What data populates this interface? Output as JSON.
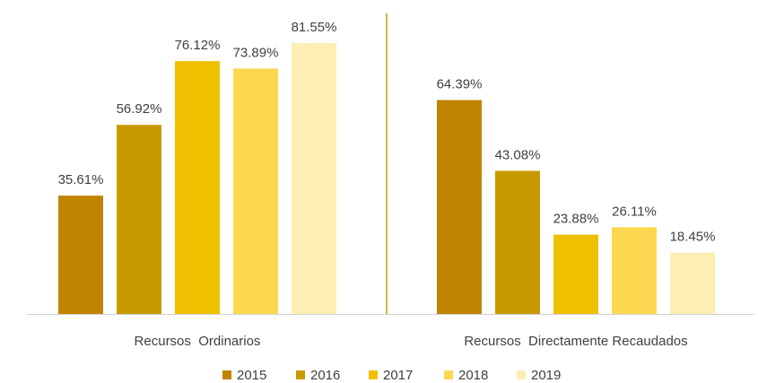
{
  "chart_data": {
    "type": "bar",
    "categories": [
      "Recursos  Ordinarios",
      "Recursos  Directamente Recaudados"
    ],
    "series": [
      {
        "name": "2015",
        "color": "#bf8400",
        "values": [
          35.61,
          64.39
        ],
        "value_labels": [
          "35.61%",
          "64.39%"
        ]
      },
      {
        "name": "2016",
        "color": "#c99a00",
        "values": [
          56.92,
          43.08
        ],
        "value_labels": [
          "56.92%",
          "43.08%"
        ]
      },
      {
        "name": "2017",
        "color": "#efc000",
        "values": [
          76.12,
          23.88
        ],
        "value_labels": [
          "76.12%",
          "23.88%"
        ]
      },
      {
        "name": "2018",
        "color": "#fcd851",
        "values": [
          73.89,
          26.11
        ],
        "value_labels": [
          "73.89%",
          "26.11%"
        ]
      },
      {
        "name": "2019",
        "color": "#fdefb3",
        "values": [
          81.55,
          18.45
        ],
        "value_labels": [
          "81.55%",
          "18.45%"
        ]
      }
    ],
    "legend": "bottom"
  }
}
